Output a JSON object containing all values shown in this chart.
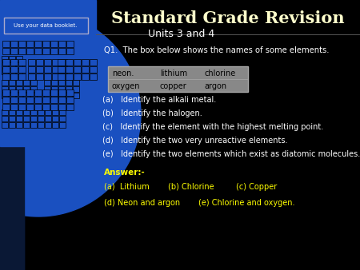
{
  "title": "Standard Grade Revision",
  "subtitle": "Units 3 and 4",
  "title_color": "#ffffcc",
  "subtitle_color": "#ffffff",
  "bg_color": "#000000",
  "q1_text": "Q1.  The box below shows the names of some elements.",
  "box_elements_row1": [
    "neon.",
    "lithium",
    "chlorine"
  ],
  "box_elements_row2": [
    "oxygen",
    "copper",
    "argon"
  ],
  "box_bg": "#888888",
  "box_text_color": "#000000",
  "questions": [
    "(a)   Identify the alkali metal.",
    "(b)   Identify the halogen.",
    "(c)   Identify the element with the highest melting point.",
    "(d)   Identify the two very unreactive elements.",
    "(e)   Identify the two elements which exist as diatomic molecules."
  ],
  "q_color": "#ffffff",
  "answer_label": "Answer:-",
  "answer_color": "#ffff00",
  "ans1a": "(a)  Lithium",
  "ans1b": "(b) Chlorine",
  "ans1c": "(c) Copper",
  "ans2a": "(d) Neon and argon",
  "ans2b": "(e) Chlorine and oxygen.",
  "booklet_btn_text": "Use your data booklet.",
  "left_blue": "#1a50c0",
  "left_dark": "#0a1a5a",
  "grid_color": "#000000",
  "divider_color": "#555555"
}
